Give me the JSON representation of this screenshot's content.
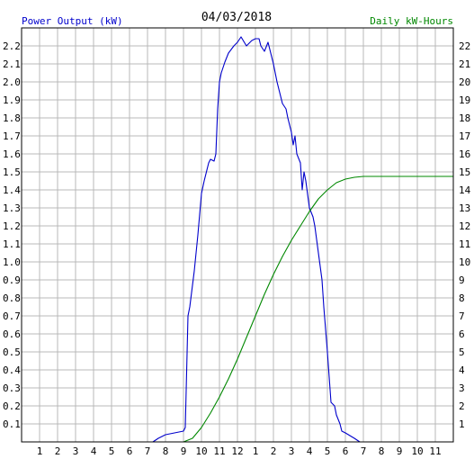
{
  "chart_data": {
    "type": "line",
    "title": "04/03/2018",
    "ylabel_left": "Power Output (kW)",
    "ylabel_right": "Daily kW-Hours",
    "xlabel": "",
    "x_ticks": [
      "1",
      "2",
      "3",
      "4",
      "5",
      "6",
      "7",
      "8",
      "9",
      "10",
      "11",
      "12",
      "1",
      "2",
      "3",
      "4",
      "5",
      "6",
      "7",
      "8",
      "9",
      "10",
      "11"
    ],
    "xlim_hours": [
      0,
      24
    ],
    "ylim_left": [
      0,
      2.3
    ],
    "ylim_right": [
      0,
      23
    ],
    "y_ticks_left": [
      "0.1",
      "0.2",
      "0.3",
      "0.4",
      "0.5",
      "0.6",
      "0.7",
      "0.8",
      "0.9",
      "1.0",
      "1.1",
      "1.2",
      "1.3",
      "1.4",
      "1.5",
      "1.6",
      "1.7",
      "1.8",
      "1.9",
      "2.0",
      "2.1",
      "2.2"
    ],
    "y_ticks_right": [
      "1",
      "2",
      "3",
      "4",
      "5",
      "6",
      "7",
      "8",
      "9",
      "10",
      "11",
      "12",
      "13",
      "14",
      "15",
      "16",
      "17",
      "18",
      "19",
      "20",
      "21",
      "22"
    ],
    "grid": true,
    "series": [
      {
        "name": "Power Output (kW)",
        "axis": "left",
        "color": "#0000cc",
        "x": [
          7.3,
          7.6,
          8.0,
          8.5,
          9.0,
          9.1,
          9.25,
          9.35,
          9.6,
          9.8,
          10.0,
          10.15,
          10.4,
          10.5,
          10.7,
          10.8,
          10.9,
          11.0,
          11.1,
          11.3,
          11.5,
          11.8,
          12.0,
          12.2,
          12.5,
          12.8,
          13.0,
          13.2,
          13.3,
          13.5,
          13.7,
          13.8,
          14.0,
          14.2,
          14.5,
          14.7,
          14.8,
          15.0,
          15.1,
          15.2,
          15.3,
          15.5,
          15.6,
          15.7,
          15.8,
          16.0,
          16.2,
          16.3,
          16.5,
          16.7,
          16.8,
          17.0,
          17.2,
          17.4,
          17.5,
          17.7,
          17.8,
          18.0,
          18.5,
          18.8,
          19.0,
          19.3,
          19.5,
          19.7
        ],
        "values": [
          0.0,
          0.02,
          0.04,
          0.05,
          0.06,
          0.08,
          0.7,
          0.75,
          0.95,
          1.15,
          1.38,
          1.45,
          1.55,
          1.57,
          1.56,
          1.6,
          1.85,
          2.0,
          2.05,
          2.11,
          2.16,
          2.2,
          2.22,
          2.25,
          2.2,
          2.23,
          2.24,
          2.24,
          2.2,
          2.17,
          2.22,
          2.18,
          2.1,
          2.0,
          1.88,
          1.85,
          1.8,
          1.72,
          1.65,
          1.7,
          1.6,
          1.55,
          1.4,
          1.5,
          1.45,
          1.3,
          1.25,
          1.2,
          1.05,
          0.9,
          0.75,
          0.5,
          0.22,
          0.2,
          0.15,
          0.1,
          0.06,
          0.05,
          0.02,
          0.0,
          0.0,
          0.0,
          0.0,
          0.0
        ]
      },
      {
        "name": "Daily kW-Hours",
        "axis": "right",
        "color": "#008800",
        "x": [
          9.0,
          9.5,
          10.0,
          10.5,
          11.0,
          11.5,
          12.0,
          12.5,
          13.0,
          13.5,
          14.0,
          14.5,
          15.0,
          15.5,
          16.0,
          16.5,
          17.0,
          17.5,
          18.0,
          18.5,
          19.0,
          20.0,
          21.0,
          22.0,
          23.0,
          24.0
        ],
        "values": [
          0.0,
          0.2,
          0.8,
          1.6,
          2.5,
          3.5,
          4.6,
          5.8,
          7.0,
          8.2,
          9.3,
          10.3,
          11.2,
          12.0,
          12.8,
          13.5,
          14.0,
          14.4,
          14.6,
          14.7,
          14.75,
          14.75,
          14.75,
          14.75,
          14.75,
          14.75
        ]
      }
    ]
  }
}
